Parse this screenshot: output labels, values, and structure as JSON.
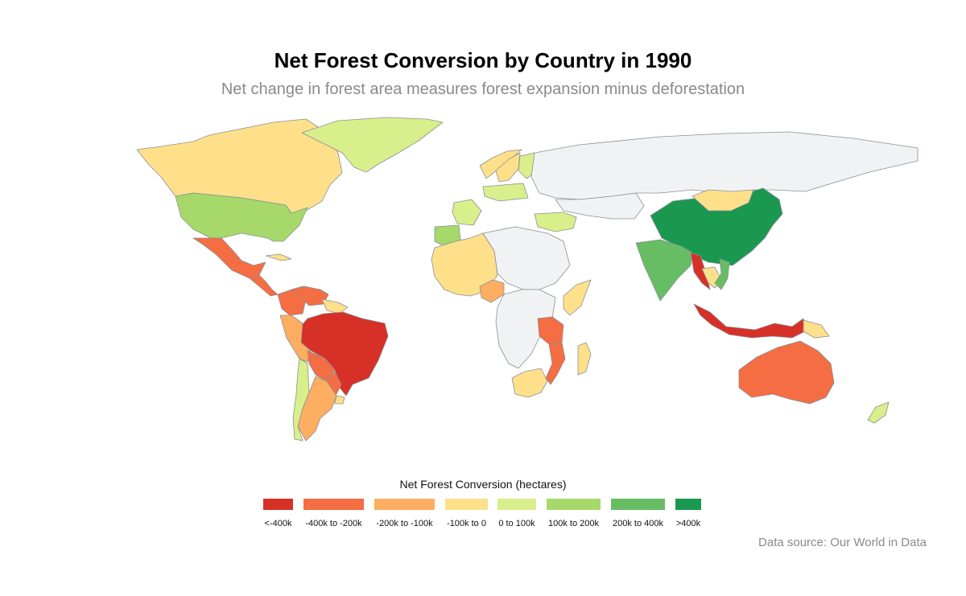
{
  "map": {
    "title": "Net Forest Conversion by Country in 1990",
    "subtitle": "Net change in forest area measures forest expansion minus deforestation",
    "no_data_color": "#f1f2f4",
    "border_color": "#8a9096",
    "legend": {
      "title": "Net Forest Conversion (hectares)",
      "classes": [
        {
          "label": "<-400k",
          "color": "#d73027"
        },
        {
          "label": "-400k to -200k",
          "color": "#f46d43"
        },
        {
          "label": "-200k to -100k",
          "color": "#fdae61"
        },
        {
          "label": "-100k to 0",
          "color": "#fee08b"
        },
        {
          "label": "0 to 100k",
          "color": "#d9ef8b"
        },
        {
          "label": "100k to 200k",
          "color": "#a6d96a"
        },
        {
          "label": "200k to 400k",
          "color": "#66bd63"
        },
        {
          "label": ">400k",
          "color": "#1a9850"
        }
      ]
    },
    "source": "Data source: Our World in Data",
    "regions": [
      {
        "name": "Canada",
        "class": 3
      },
      {
        "name": "United States",
        "class": 5
      },
      {
        "name": "Mexico",
        "class": 1
      },
      {
        "name": "Central America",
        "class": 1
      },
      {
        "name": "Cuba",
        "class": 3
      },
      {
        "name": "Greenland",
        "class": 4
      },
      {
        "name": "Colombia",
        "class": 1
      },
      {
        "name": "Venezuela",
        "class": 1
      },
      {
        "name": "Guiana Shield",
        "class": 3
      },
      {
        "name": "Brazil",
        "class": 0
      },
      {
        "name": "Peru",
        "class": 2
      },
      {
        "name": "Bolivia",
        "class": 1
      },
      {
        "name": "Paraguay",
        "class": 1
      },
      {
        "name": "Argentina",
        "class": 2
      },
      {
        "name": "Chile",
        "class": 4
      },
      {
        "name": "Uruguay",
        "class": 3
      },
      {
        "name": "Norway",
        "class": 3
      },
      {
        "name": "Sweden",
        "class": 3
      },
      {
        "name": "Finland",
        "class": 4
      },
      {
        "name": "Poland",
        "class": 4
      },
      {
        "name": "France",
        "class": 4
      },
      {
        "name": "Spain",
        "class": 5
      },
      {
        "name": "Turkey",
        "class": 4
      },
      {
        "name": "Russia",
        "class": null
      },
      {
        "name": "Kazakhstan",
        "class": null
      },
      {
        "name": "China",
        "class": 7
      },
      {
        "name": "Mongolia",
        "class": 3
      },
      {
        "name": "India",
        "class": 6
      },
      {
        "name": "Myanmar",
        "class": 0
      },
      {
        "name": "Thailand",
        "class": 3
      },
      {
        "name": "Vietnam",
        "class": 6
      },
      {
        "name": "Indonesia",
        "class": 0
      },
      {
        "name": "Papua New Guinea",
        "class": 3
      },
      {
        "name": "Australia",
        "class": 1
      },
      {
        "name": "New Zealand",
        "class": 4
      },
      {
        "name": "West Africa",
        "class": 3
      },
      {
        "name": "Nigeria",
        "class": 2
      },
      {
        "name": "Sahara",
        "class": null
      },
      {
        "name": "Central Africa",
        "class": null
      },
      {
        "name": "Tanzania",
        "class": 1
      },
      {
        "name": "Mozambique",
        "class": 1
      },
      {
        "name": "South Africa",
        "class": 3
      },
      {
        "name": "Madagascar",
        "class": 3
      },
      {
        "name": "Horn of Africa",
        "class": 3
      }
    ]
  }
}
